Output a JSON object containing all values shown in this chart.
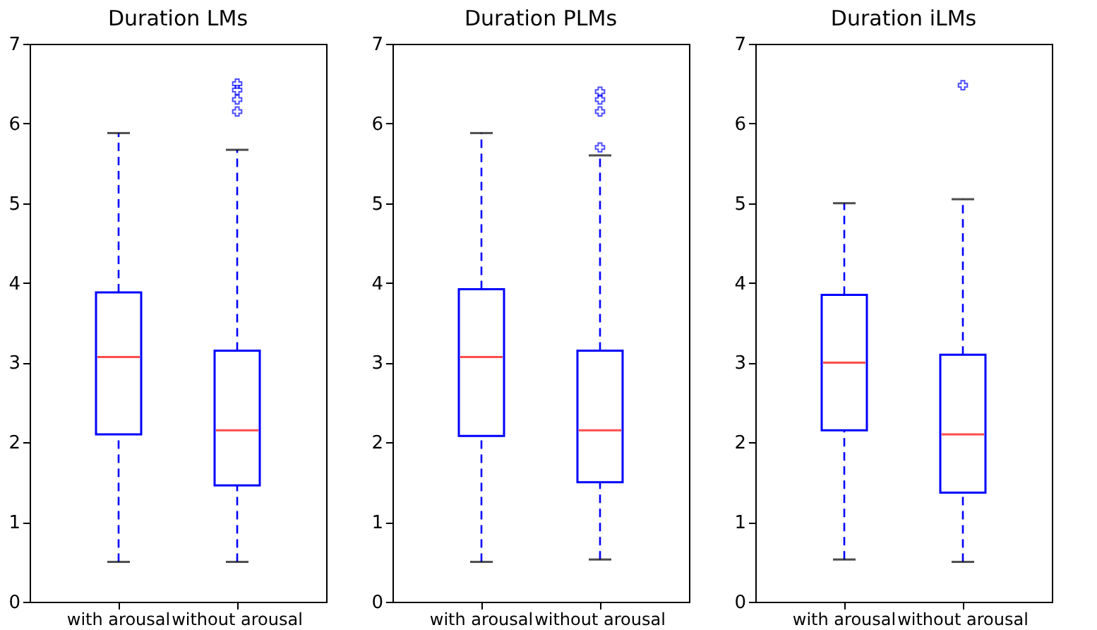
{
  "chart_data": [
    {
      "type": "box",
      "title": "Duration LMs",
      "categories": [
        "with arousal",
        "without arousal"
      ],
      "ylim": [
        0,
        7
      ],
      "yticks": [
        0,
        1,
        2,
        3,
        4,
        5,
        6,
        7
      ],
      "grid": false,
      "marker": "cross",
      "series": [
        {
          "color": "#0000ff",
          "boxes": [
            {
              "low": 0.5,
              "q1": 2.1,
              "median": 3.07,
              "q3": 3.88,
              "high": 5.88
            },
            {
              "low": 0.5,
              "q1": 1.46,
              "median": 2.15,
              "q3": 3.15,
              "high": 5.67,
              "outliers": [
                6.15,
                6.3,
                6.42,
                6.5
              ]
            }
          ]
        }
      ]
    },
    {
      "type": "box",
      "title": "Duration PLMs",
      "categories": [
        "with arousal",
        "without arousal"
      ],
      "ylim": [
        0,
        7
      ],
      "yticks": [
        0,
        1,
        2,
        3,
        4,
        5,
        6,
        7
      ],
      "grid": false,
      "marker": "cross",
      "series": [
        {
          "color": "#0000ff",
          "boxes": [
            {
              "low": 0.5,
              "q1": 2.08,
              "median": 3.07,
              "q3": 3.92,
              "high": 5.88
            },
            {
              "low": 0.53,
              "q1": 1.5,
              "median": 2.15,
              "q3": 3.15,
              "high": 5.6,
              "outliers": [
                5.7,
                6.15,
                6.3,
                6.4
              ]
            }
          ]
        }
      ]
    },
    {
      "type": "box",
      "title": "Duration iLMs",
      "categories": [
        "with arousal",
        "without arousal"
      ],
      "ylim": [
        0,
        7
      ],
      "yticks": [
        0,
        1,
        2,
        3,
        4,
        5,
        6,
        7
      ],
      "grid": false,
      "marker": "cross",
      "series": [
        {
          "color": "#0000ff",
          "boxes": [
            {
              "low": 0.53,
              "q1": 2.15,
              "median": 3.0,
              "q3": 3.85,
              "high": 5.0
            },
            {
              "low": 0.5,
              "q1": 1.37,
              "median": 2.1,
              "q3": 3.1,
              "high": 5.05,
              "outliers": [
                6.48
              ]
            }
          ]
        }
      ]
    }
  ]
}
